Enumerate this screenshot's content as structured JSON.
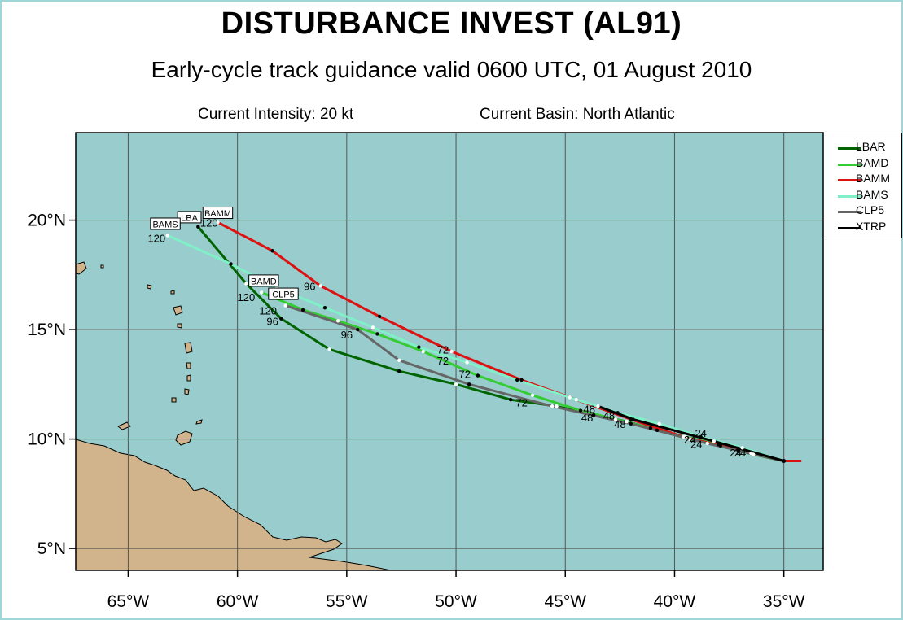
{
  "header": {
    "title": "DISTURBANCE INVEST (AL91)",
    "subtitle": "Early-cycle track guidance valid 0600 UTC, 01 August 2010",
    "intensity": "Current Intensity: 20 kt",
    "basin": "Current Basin: North Atlantic"
  },
  "map": {
    "ocean_color": "#99cccc",
    "land_color": "#d2b48c",
    "grid_color": "#555555",
    "lon_range": [
      -67.4,
      -33.2
    ],
    "lat_range": [
      4.0,
      24.0
    ],
    "lon_ticks": [
      {
        "lon": -65,
        "label": "65°W"
      },
      {
        "lon": -60,
        "label": "60°W"
      },
      {
        "lon": -55,
        "label": "55°W"
      },
      {
        "lon": -50,
        "label": "50°W"
      },
      {
        "lon": -45,
        "label": "45°W"
      },
      {
        "lon": -40,
        "label": "40°W"
      },
      {
        "lon": -35,
        "label": "35°W"
      }
    ],
    "lat_ticks": [
      {
        "lat": 20,
        "label": "20°N"
      },
      {
        "lat": 15,
        "label": "15°N"
      },
      {
        "lat": 10,
        "label": "10°N"
      },
      {
        "lat": 5,
        "label": "5°N"
      }
    ]
  },
  "chart_data": {
    "type": "line",
    "x_axis": "longitude",
    "y_axis": "latitude",
    "series": [
      {
        "name": "LBAR",
        "color": "#006400",
        "points": [
          [
            -35.0,
            9.0
          ],
          [
            -36.4,
            9.3
          ],
          [
            -37.9,
            9.7
          ],
          [
            -39.3,
            10.0
          ],
          [
            -40.8,
            10.4
          ],
          [
            -42.2,
            10.8
          ],
          [
            -43.7,
            11.1
          ],
          [
            -45.4,
            11.5
          ],
          [
            -47.5,
            11.8
          ],
          [
            -50.0,
            12.5
          ],
          [
            -52.6,
            13.1
          ],
          [
            -55.8,
            14.1
          ],
          [
            -58.0,
            15.5
          ],
          [
            -59.6,
            17.1
          ],
          [
            -61.8,
            19.7
          ]
        ],
        "labels": [
          {
            "text": "24",
            "lon": -37.0,
            "lat": 9.2
          },
          {
            "text": "48",
            "lon": -44.0,
            "lat": 10.8
          },
          {
            "text": "72",
            "lon": -47.0,
            "lat": 11.5
          },
          {
            "text": "96",
            "lon": -58.4,
            "lat": 15.2
          }
        ],
        "box": {
          "text": "LBA",
          "lon": -62.2,
          "lat": 20.1
        }
      },
      {
        "name": "BAMD",
        "color": "#33cc33",
        "points": [
          [
            -35.0,
            9.0
          ],
          [
            -36.5,
            9.35
          ],
          [
            -38.0,
            9.75
          ],
          [
            -39.5,
            10.1
          ],
          [
            -41.1,
            10.5
          ],
          [
            -42.7,
            10.9
          ],
          [
            -44.3,
            11.3
          ],
          [
            -46.5,
            12.0
          ],
          [
            -49.0,
            12.9
          ],
          [
            -51.5,
            14.0
          ],
          [
            -53.6,
            14.8
          ],
          [
            -55.4,
            15.4
          ],
          [
            -57.0,
            15.9
          ],
          [
            -58.9,
            16.7
          ]
        ],
        "labels": [
          {
            "text": "24",
            "lon": -39.3,
            "lat": 9.8
          },
          {
            "text": "48",
            "lon": -42.5,
            "lat": 10.5
          },
          {
            "text": "72",
            "lon": -50.6,
            "lat": 13.4
          },
          {
            "text": "120",
            "lon": -59.6,
            "lat": 16.3
          }
        ],
        "box": {
          "text": "BAMD",
          "lon": -58.8,
          "lat": 17.2
        }
      },
      {
        "name": "BAMM",
        "color": "#dd1111",
        "points": [
          [
            -34.2,
            9.0
          ],
          [
            -35.0,
            9.0
          ],
          [
            -37.1,
            9.5
          ],
          [
            -39.6,
            10.1
          ],
          [
            -42.0,
            10.9
          ],
          [
            -44.5,
            11.8
          ],
          [
            -47.0,
            12.7
          ],
          [
            -50.2,
            14.0
          ],
          [
            -53.5,
            15.6
          ],
          [
            -56.2,
            17.0
          ],
          [
            -58.4,
            18.6
          ],
          [
            -60.9,
            19.9
          ]
        ],
        "labels": [
          {
            "text": "24",
            "lon": -37.2,
            "lat": 9.2
          },
          {
            "text": "72",
            "lon": -50.6,
            "lat": 13.9
          },
          {
            "text": "96",
            "lon": -56.7,
            "lat": 16.8
          },
          {
            "text": "120",
            "lon": -61.3,
            "lat": 19.7
          }
        ],
        "box": {
          "text": "BAMM",
          "lon": -60.9,
          "lat": 20.3
        }
      },
      {
        "name": "BAMS",
        "color": "#80f0c8",
        "points": [
          [
            -35.0,
            9.0
          ],
          [
            -36.9,
            9.6
          ],
          [
            -38.8,
            10.1
          ],
          [
            -40.7,
            10.7
          ],
          [
            -42.6,
            11.2
          ],
          [
            -44.8,
            11.9
          ],
          [
            -47.2,
            12.7
          ],
          [
            -49.5,
            13.5
          ],
          [
            -51.7,
            14.2
          ],
          [
            -53.8,
            15.1
          ],
          [
            -56.0,
            16.0
          ],
          [
            -58.2,
            16.9
          ],
          [
            -60.3,
            18.0
          ],
          [
            -63.2,
            19.3
          ]
        ],
        "labels": [
          {
            "text": "24",
            "lon": -38.8,
            "lat": 10.1
          },
          {
            "text": "120",
            "lon": -63.7,
            "lat": 19.0
          }
        ],
        "box": {
          "text": "BAMS",
          "lon": -63.3,
          "lat": 19.8
        }
      },
      {
        "name": "CLP5",
        "color": "#666666",
        "points": [
          [
            -35.0,
            9.0
          ],
          [
            -38.5,
            9.8
          ],
          [
            -42.0,
            10.7
          ],
          [
            -45.6,
            11.5
          ],
          [
            -49.4,
            12.5
          ],
          [
            -52.6,
            13.6
          ],
          [
            -54.5,
            15.0
          ],
          [
            -57.8,
            16.1
          ]
        ],
        "labels": [
          {
            "text": "24",
            "lon": -39.0,
            "lat": 9.6
          },
          {
            "text": "48",
            "lon": -43.0,
            "lat": 10.9
          },
          {
            "text": "72",
            "lon": -49.6,
            "lat": 12.8
          },
          {
            "text": "96",
            "lon": -55.0,
            "lat": 14.6
          },
          {
            "text": "120",
            "lon": -58.6,
            "lat": 15.7
          }
        ],
        "box": {
          "text": "CLP5",
          "lon": -57.9,
          "lat": 16.6
        }
      },
      {
        "name": "XTRP",
        "color": "#000000",
        "points": [
          [
            -35.0,
            9.0
          ],
          [
            -38.2,
            9.9
          ],
          [
            -41.9,
            10.9
          ],
          [
            -43.5,
            11.5
          ]
        ],
        "labels": [
          {
            "text": "48",
            "lon": -43.9,
            "lat": 11.2
          },
          {
            "text": "96",
            "lon": -57.6,
            "lat": 16.4
          }
        ],
        "box": null
      }
    ],
    "legend": {
      "placement": "outside-right",
      "entries": [
        {
          "name": "LBAR",
          "color": "#006400"
        },
        {
          "name": "BAMD",
          "color": "#33cc33"
        },
        {
          "name": "BAMM",
          "color": "#dd1111"
        },
        {
          "name": "BAMS",
          "color": "#80f0c8"
        },
        {
          "name": "CLP5",
          "color": "#666666"
        },
        {
          "name": "XTRP",
          "color": "#000000"
        }
      ]
    }
  }
}
